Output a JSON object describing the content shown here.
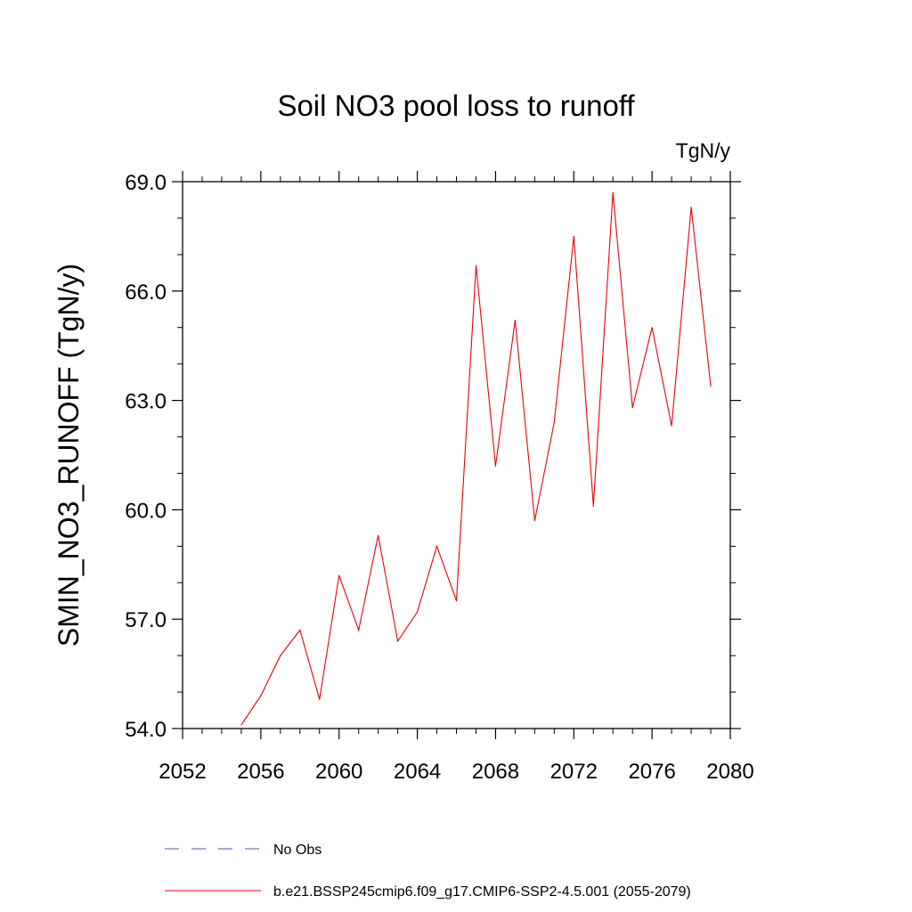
{
  "chart_data": {
    "type": "line",
    "title": "Soil NO3 pool loss to runoff",
    "units": "TgN/y",
    "ylabel": "SMIN_NO3_RUNOFF  (TgN/y)",
    "xlabel": "",
    "xlim": [
      2052,
      2080
    ],
    "ylim": [
      54.0,
      69.0
    ],
    "x_ticks": [
      2052,
      2056,
      2060,
      2064,
      2068,
      2072,
      2076,
      2080
    ],
    "x_tick_labels": [
      "2052",
      "2056",
      "2060",
      "2064",
      "2068",
      "2072",
      "2076",
      "2080"
    ],
    "y_ticks": [
      54.0,
      57.0,
      60.0,
      63.0,
      66.0,
      69.0
    ],
    "y_tick_labels": [
      "54.0",
      "57.0",
      "60.0",
      "63.0",
      "66.0",
      "69.0"
    ],
    "series": [
      {
        "name": "b.e21.BSSP245cmip6.f09_g17.CMIP6-SSP2-4.5.001 (2055-2079)",
        "color": "#e8000b",
        "x": [
          2055,
          2056,
          2057,
          2058,
          2059,
          2060,
          2061,
          2062,
          2063,
          2064,
          2065,
          2066,
          2067,
          2068,
          2069,
          2070,
          2071,
          2072,
          2073,
          2074,
          2075,
          2076,
          2077,
          2078,
          2079
        ],
        "values": [
          54.1,
          54.9,
          56.0,
          56.7,
          54.8,
          58.2,
          56.7,
          59.3,
          56.4,
          57.2,
          59.0,
          57.5,
          66.7,
          61.2,
          65.2,
          59.7,
          62.4,
          67.5,
          60.1,
          68.7,
          62.8,
          65.0,
          62.3,
          68.3,
          63.4
        ]
      }
    ],
    "legend": [
      {
        "label": "No Obs",
        "color": "#5050a0",
        "style": "dashed"
      },
      {
        "label": "b.e21.BSSP245cmip6.f09_g17.CMIP6-SSP2-4.5.001 (2055-2079)",
        "color": "#e8000b",
        "style": "solid"
      }
    ],
    "legend_placement": "bottom",
    "grid": false
  }
}
